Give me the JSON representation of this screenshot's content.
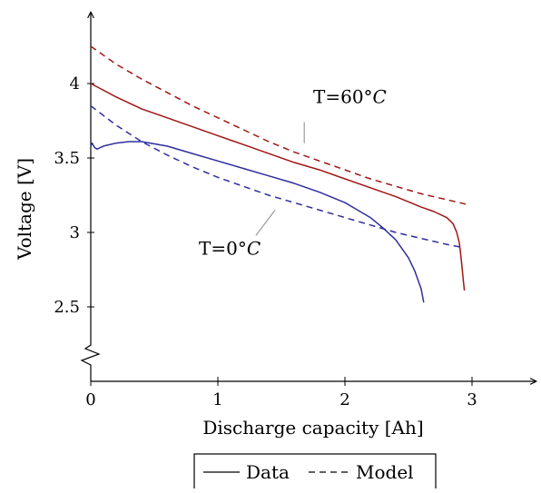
{
  "chart_data": {
    "type": "line",
    "title": "",
    "xlabel": "Discharge capacity [Ah]",
    "ylabel": "Voltage [V]",
    "xlim": [
      0,
      3.5
    ],
    "ylim": [
      2.15,
      4.5
    ],
    "y_axis_break": true,
    "x_ticks": [
      {
        "value": 0,
        "label": "0"
      },
      {
        "value": 1,
        "label": "1"
      },
      {
        "value": 2,
        "label": "2"
      },
      {
        "value": 3,
        "label": "3"
      }
    ],
    "y_ticks": [
      {
        "value": 2.5,
        "label": "2.5"
      },
      {
        "value": 3,
        "label": "3"
      },
      {
        "value": 3.5,
        "label": "3.5"
      },
      {
        "value": 4,
        "label": "4"
      }
    ],
    "grid": false,
    "legend": {
      "placement": "bottom-center",
      "entries": [
        {
          "label": "Data",
          "style": "solid"
        },
        {
          "label": "Model",
          "style": "dashed"
        }
      ]
    },
    "annotations": [
      {
        "text_main": "T=60°",
        "text_var": "C",
        "x": 1.75,
        "y": 3.87,
        "leader_from": [
          1.68,
          3.74
        ],
        "leader_to": [
          1.68,
          3.6
        ]
      },
      {
        "text_main": "T=0°",
        "text_var": "C",
        "x": 0.85,
        "y": 2.85,
        "leader_from": [
          1.45,
          3.15
        ],
        "leader_to": [
          1.3,
          2.98
        ]
      }
    ],
    "series": [
      {
        "label": "T=60°C",
        "style": "solid",
        "color": "#a01515",
        "x": [
          0,
          0.2,
          0.4,
          0.6,
          0.8,
          1.0,
          1.2,
          1.4,
          1.6,
          1.8,
          2.0,
          2.2,
          2.4,
          2.6,
          2.7,
          2.8,
          2.85,
          2.88,
          2.9,
          2.91,
          2.92,
          2.93,
          2.94
        ],
        "y": [
          4.0,
          3.91,
          3.83,
          3.77,
          3.71,
          3.65,
          3.59,
          3.53,
          3.47,
          3.42,
          3.36,
          3.3,
          3.24,
          3.17,
          3.14,
          3.1,
          3.06,
          3.0,
          2.93,
          2.86,
          2.78,
          2.69,
          2.61
        ]
      },
      {
        "label": "T=60°C",
        "style": "dashed",
        "color": "#a01515",
        "x": [
          0,
          0.2,
          0.4,
          0.6,
          0.8,
          1.0,
          1.2,
          1.4,
          1.6,
          1.8,
          2.0,
          2.2,
          2.4,
          2.6,
          2.8,
          2.95
        ],
        "y": [
          4.25,
          4.13,
          4.03,
          3.94,
          3.85,
          3.77,
          3.69,
          3.61,
          3.54,
          3.48,
          3.42,
          3.36,
          3.31,
          3.26,
          3.22,
          3.19
        ]
      },
      {
        "label": "T=0°C",
        "style": "solid",
        "color": "#2e2e9e",
        "x": [
          0,
          0.01,
          0.03,
          0.05,
          0.1,
          0.2,
          0.3,
          0.4,
          0.6,
          0.8,
          1.0,
          1.2,
          1.4,
          1.6,
          1.8,
          2.0,
          2.1,
          2.2,
          2.3,
          2.4,
          2.5,
          2.55,
          2.6,
          2.62
        ],
        "y": [
          3.58,
          3.6,
          3.57,
          3.56,
          3.58,
          3.6,
          3.61,
          3.61,
          3.58,
          3.53,
          3.48,
          3.43,
          3.38,
          3.33,
          3.27,
          3.2,
          3.15,
          3.1,
          3.03,
          2.95,
          2.83,
          2.74,
          2.62,
          2.53
        ]
      },
      {
        "label": "T=0°C",
        "style": "dashed",
        "color": "#2e2e9e",
        "x": [
          0,
          0.2,
          0.4,
          0.6,
          0.8,
          1.0,
          1.2,
          1.4,
          1.6,
          1.8,
          2.0,
          2.2,
          2.4,
          2.6,
          2.8,
          2.92
        ],
        "y": [
          3.85,
          3.72,
          3.61,
          3.52,
          3.44,
          3.37,
          3.31,
          3.25,
          3.2,
          3.15,
          3.1,
          3.05,
          3.0,
          2.96,
          2.92,
          2.9
        ]
      }
    ]
  }
}
